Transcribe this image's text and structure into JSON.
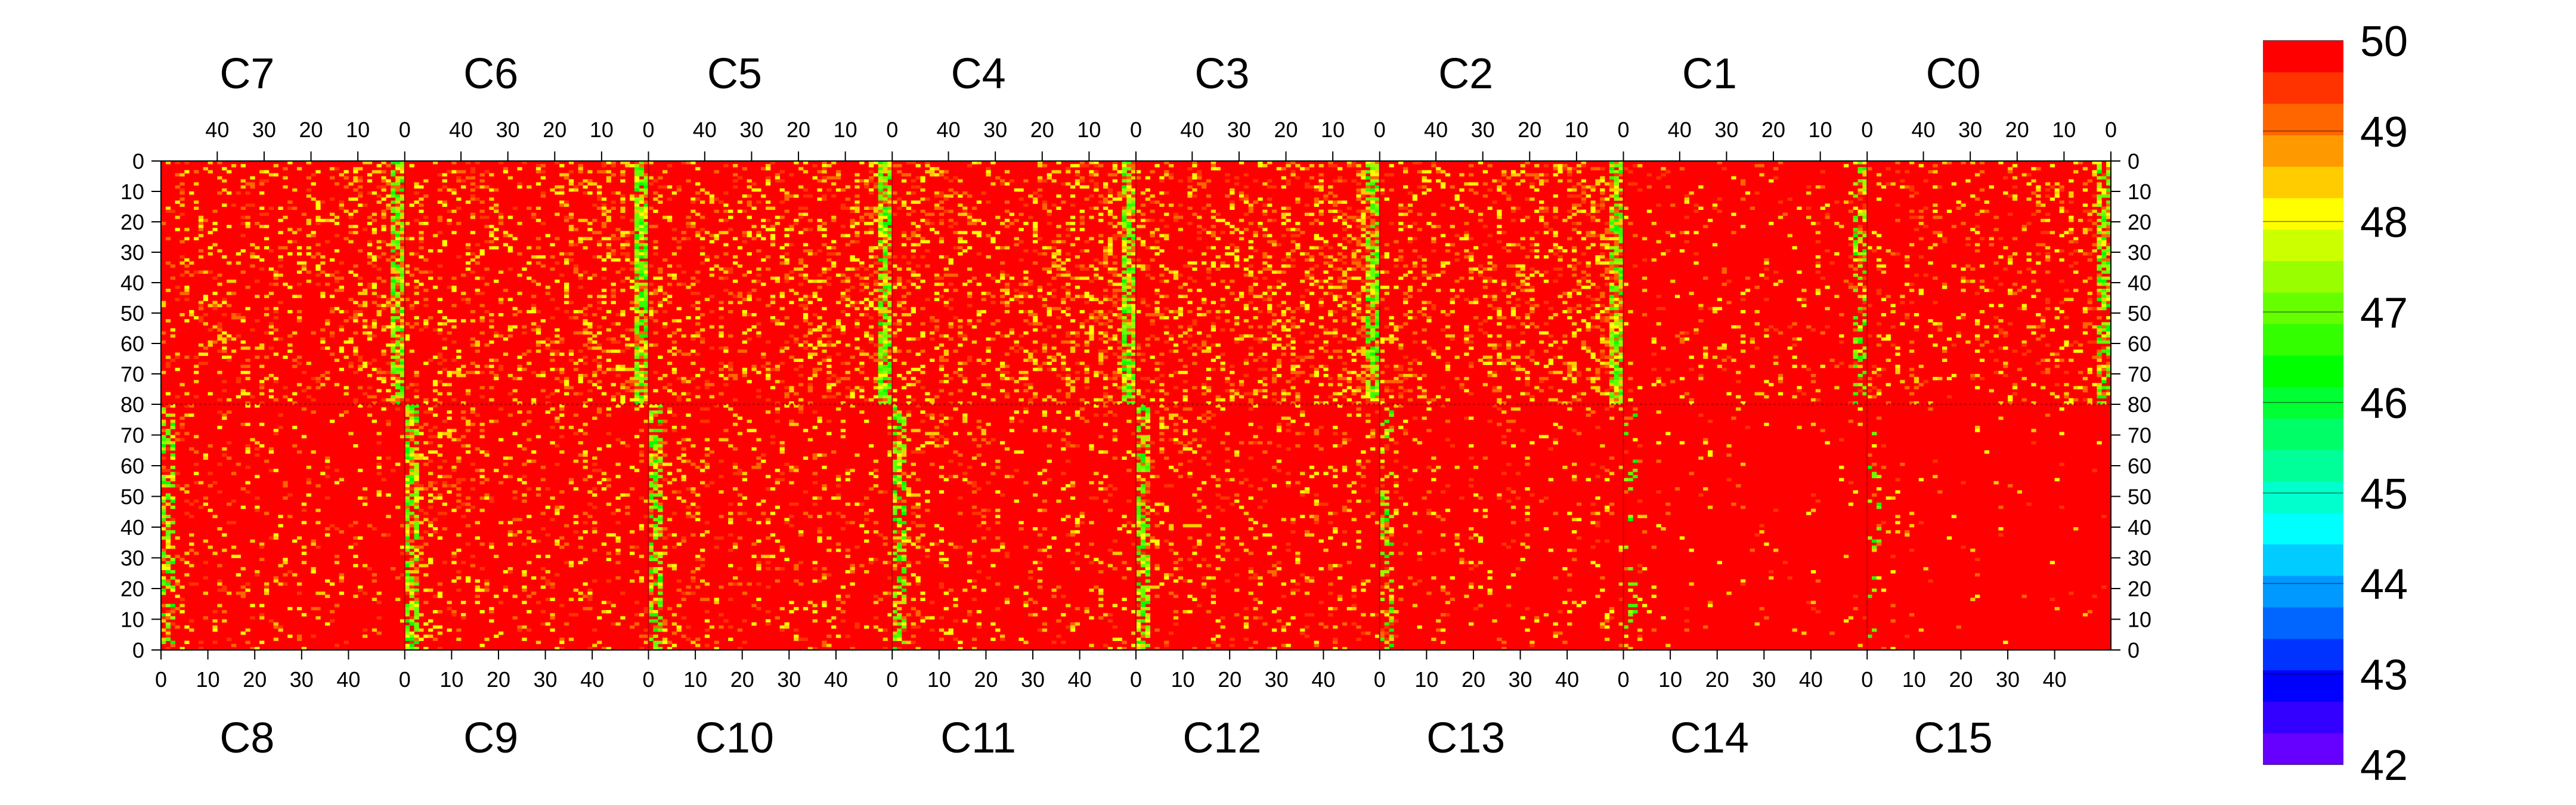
{
  "chart_data": {
    "type": "heatmap",
    "title": "",
    "xlabel": "",
    "ylabel": "",
    "z_range": [
      42,
      50
    ],
    "colorbar": {
      "ticks": [
        42,
        43,
        44,
        45,
        46,
        47,
        48,
        49,
        50
      ],
      "tick_labels": [
        "42",
        "43",
        "44",
        "45",
        "46",
        "47",
        "48",
        "49",
        "50"
      ],
      "colors": [
        "#6600ff",
        "#3300ff",
        "#0000ff",
        "#0033ff",
        "#0066ff",
        "#0099ff",
        "#00ccff",
        "#00ffff",
        "#00ffcc",
        "#00ff99",
        "#00ff66",
        "#00ff33",
        "#00ff00",
        "#33ff00",
        "#66ff00",
        "#99ff00",
        "#ccff00",
        "#ffff00",
        "#ffcc00",
        "#ff9900",
        "#ff6600",
        "#ff3300",
        "#ff0000"
      ]
    },
    "top_row_chips": [
      "C7",
      "C6",
      "C5",
      "C4",
      "C3",
      "C2",
      "C1",
      "C0"
    ],
    "bottom_row_chips": [
      "C8",
      "C9",
      "C10",
      "C11",
      "C12",
      "C13",
      "C14",
      "C15"
    ],
    "top_x_tick_labels": [
      "40",
      "30",
      "20",
      "10",
      "0"
    ],
    "bottom_x_tick_labels": [
      "0",
      "10",
      "20",
      "30",
      "40"
    ],
    "top_y_tick_labels": [
      "0",
      "10",
      "20",
      "30",
      "40",
      "50",
      "60",
      "70",
      "80"
    ],
    "bottom_y_tick_labels": [
      "70",
      "60",
      "50",
      "40",
      "30",
      "20",
      "10",
      "0"
    ],
    "columns_per_chip": 52,
    "rows_per_chip": 80,
    "cell_values_note_free": true,
    "background_value": 50,
    "speckle_values": [
      49.5,
      49,
      48.5,
      48,
      47.5,
      47,
      46.5
    ],
    "speckle_density_by_chip": {
      "C0": 0.18,
      "C1": 0.1,
      "C2": 0.28,
      "C3": 0.32,
      "C4": 0.3,
      "C5": 0.28,
      "C6": 0.26,
      "C7": 0.22,
      "C8": 0.12,
      "C9": 0.18,
      "C10": 0.16,
      "C11": 0.14,
      "C12": 0.16,
      "C13": 0.1,
      "C14": 0.03,
      "C15": 0.03
    },
    "hot_column_value": 47.5
  }
}
